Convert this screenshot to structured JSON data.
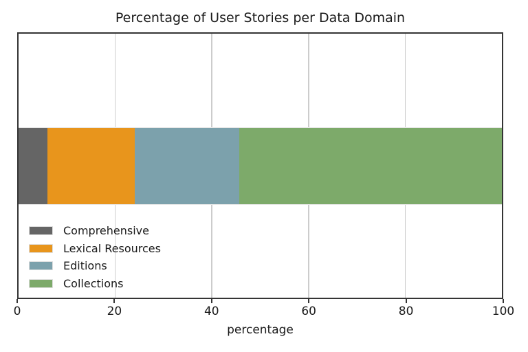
{
  "chart_data": {
    "type": "bar",
    "orientation": "horizontal",
    "stacked": true,
    "title": "Percentage of User Stories per Data Domain",
    "xlabel": "percentage",
    "xlim": [
      0,
      100
    ],
    "xticks": [
      0,
      20,
      40,
      60,
      80,
      100
    ],
    "grid": "vertical gridlines at 20, 40, 60, 80 behind bar",
    "legend_position": "lower-left inside axes, no frame",
    "categories": [
      "User Stories"
    ],
    "series": [
      {
        "name": "Comprehensive",
        "value": 6.0,
        "color": "#656565"
      },
      {
        "name": "Lexical Resources",
        "value": 18.0,
        "color": "#E8951C"
      },
      {
        "name": "Editions",
        "value": 21.7,
        "color": "#7CA1AC"
      },
      {
        "name": "Collections",
        "value": 54.3,
        "color": "#7DAA6A"
      }
    ]
  },
  "colors": {
    "spine": "#343434",
    "grid": "#cccccc",
    "text": "#1a1a1a",
    "background": "#ffffff",
    "bar_edge": "#e9e9e9"
  }
}
